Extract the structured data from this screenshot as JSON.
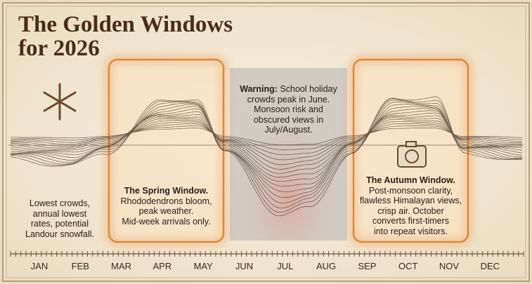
{
  "title_lines": [
    "The Golden Windows",
    "for 2026"
  ],
  "months": [
    "JAN",
    "FEB",
    "MAR",
    "APR",
    "MAY",
    "JUN",
    "JUL",
    "AUG",
    "SEP",
    "OCT",
    "NOV",
    "DEC"
  ],
  "winter": {
    "lines": [
      "Lowest crowds,",
      "annual lowest",
      "rates, potential",
      "Landour snowfall."
    ]
  },
  "spring": {
    "title": "The Spring Window.",
    "lines": [
      "Rhododendrons bloom,",
      "peak weather.",
      "Mid-week arrivals only."
    ]
  },
  "warning": {
    "label": "Warning:",
    "lines": [
      "School holiday",
      "crowds peak in June.",
      "Monsoon risk and",
      "obscured views in",
      "July/August."
    ]
  },
  "autumn": {
    "title": "The Autumn Window.",
    "lines": [
      "Post-monsoon clarity,",
      "flawless Himalayan views,",
      "crisp air. October",
      "converts first-timers",
      "into repeat visitors."
    ]
  }
}
